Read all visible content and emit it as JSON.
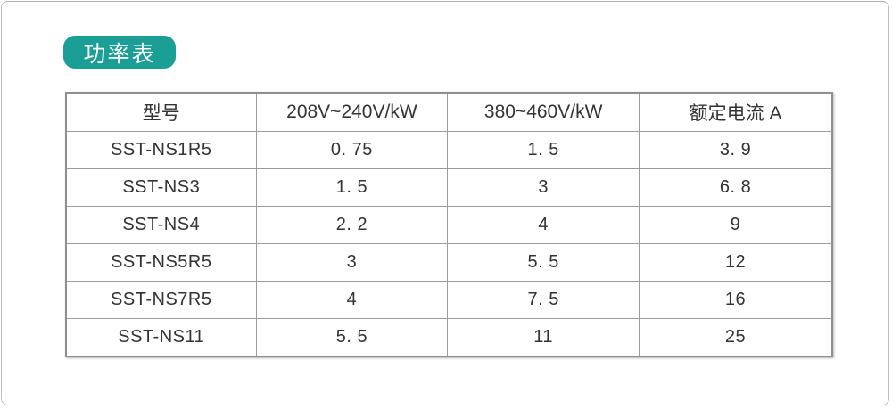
{
  "badge": {
    "label": "功率表",
    "background_color": "#1b9e96",
    "text_color": "#ffffff"
  },
  "table": {
    "columns": [
      "型号",
      "208V~240V/kW",
      "380~460V/kW",
      "额定电流 A"
    ],
    "rows": [
      [
        "SST-NS1R5",
        "0. 75",
        "1. 5",
        "3. 9"
      ],
      [
        "SST-NS3",
        "1. 5",
        "3",
        "6. 8"
      ],
      [
        "SST-NS4",
        "2. 2",
        "4",
        "9"
      ],
      [
        "SST-NS5R5",
        "3",
        "5. 5",
        "12"
      ],
      [
        "SST-NS7R5",
        "4",
        "7. 5",
        "16"
      ],
      [
        "SST-NS11",
        "5. 5",
        "11",
        "25"
      ]
    ],
    "border_color": "#9b9b9b",
    "text_color": "#333333"
  },
  "chart_data": {
    "type": "table",
    "title": "功率表",
    "columns": [
      "型号",
      "208V~240V/kW",
      "380~460V/kW",
      "额定电流 A"
    ],
    "rows": [
      [
        "SST-NS1R5",
        0.75,
        1.5,
        3.9
      ],
      [
        "SST-NS3",
        1.5,
        3,
        6.8
      ],
      [
        "SST-NS4",
        2.2,
        4,
        9
      ],
      [
        "SST-NS5R5",
        3,
        5.5,
        12
      ],
      [
        "SST-NS7R5",
        4,
        7.5,
        16
      ],
      [
        "SST-NS11",
        5.5,
        11,
        25
      ]
    ]
  }
}
